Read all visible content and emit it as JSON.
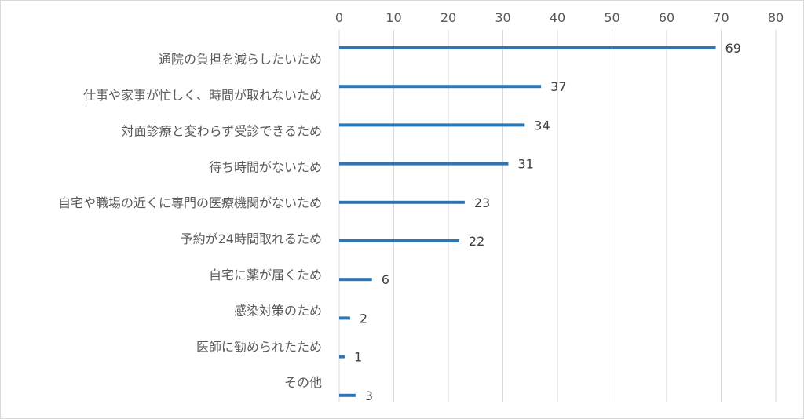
{
  "chart_data": {
    "type": "bar",
    "orientation": "horizontal",
    "title": "",
    "xlabel": "",
    "ylabel": "",
    "xlim": [
      0,
      80
    ],
    "xticks": [
      0,
      10,
      20,
      30,
      40,
      50,
      60,
      70,
      80
    ],
    "xtick_labels": [
      "0",
      "10",
      "20",
      "30",
      "40",
      "50",
      "60",
      "70",
      "80"
    ],
    "axis_position": "top",
    "grid": true,
    "legend": "none",
    "bar_color": "#2e75b6",
    "categories": [
      "通院の負担を減らしたいため",
      "仕事や家事が忙しく、時間が取れないため",
      "対面診療と変わらず受診できるため",
      "待ち時間がないため",
      "自宅や職場の近くに専門の医療機関がないため",
      "予約が24時間取れるため",
      "自宅に薬が届くため",
      "感染対策のため",
      "医師に勧められたため",
      "その他"
    ],
    "values": [
      69,
      37,
      34,
      31,
      23,
      22,
      6,
      2,
      1,
      3
    ],
    "data_labels": [
      "69",
      "37",
      "34",
      "31",
      "23",
      "22",
      "6",
      "2",
      "1",
      "3"
    ]
  }
}
